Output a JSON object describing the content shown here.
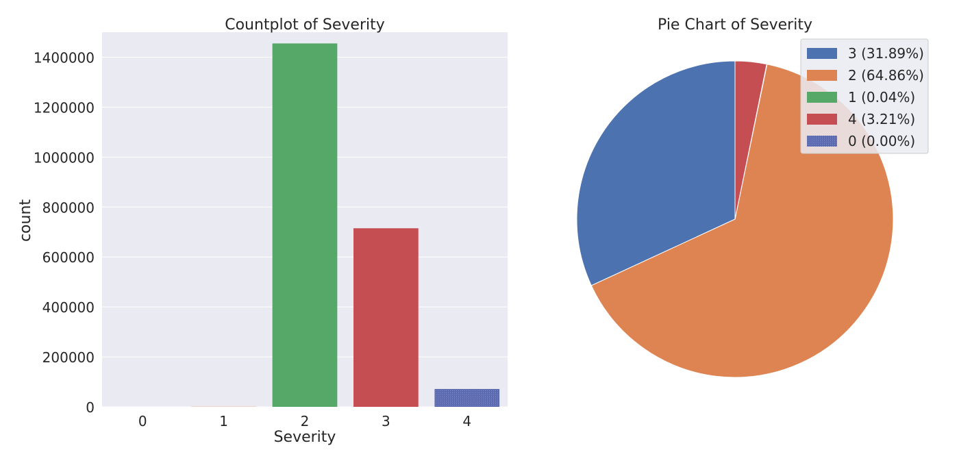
{
  "chart_data": [
    {
      "type": "bar",
      "title": "Countplot of Severity",
      "xlabel": "Severity",
      "ylabel": "count",
      "categories": [
        "0",
        "1",
        "2",
        "3",
        "4"
      ],
      "values": [
        0,
        700,
        1455000,
        715000,
        71500
      ],
      "colors": [
        "#4c72b0",
        "#dd8452",
        "#55a868",
        "#c44e52",
        "#6e6eb8"
      ],
      "ylim": [
        0,
        1500000
      ],
      "yticks": [
        0,
        200000,
        400000,
        600000,
        800000,
        1000000,
        1200000,
        1400000
      ],
      "ytick_labels": [
        "0",
        "200000",
        "400000",
        "600000",
        "800000",
        "1000000",
        "1200000",
        "1400000"
      ],
      "grid": true,
      "background": "#eaeaf2"
    },
    {
      "type": "pie",
      "title": "Pie Chart of Severity",
      "labels": [
        "3",
        "2",
        "1",
        "4",
        "0"
      ],
      "values": [
        31.89,
        64.86,
        0.04,
        3.21,
        0.0
      ],
      "legend_entries": [
        "3 (31.89%)",
        "2 (64.86%)",
        "1 (0.04%)",
        "4 (3.21%)",
        "0 (0.00%)"
      ],
      "colors": [
        "#4c72b0",
        "#dd8452",
        "#55a868",
        "#c44e52",
        "#6e6eb8"
      ],
      "legend_position": "top-right"
    }
  ]
}
